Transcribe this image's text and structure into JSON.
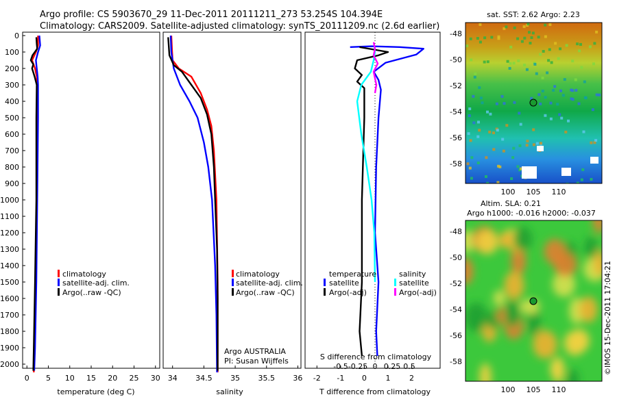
{
  "header": {
    "line1": "Argo profile: CS 5903670_29 11-Dec-2011 20111211_273 53.254S 104.394E",
    "line2": "Climatology: CARS2009. Satellite-adjusted climatology: synTS_20111209.nc (2.6d earlier)"
  },
  "colors": {
    "climatology": "#ff0000",
    "satellite": "#0000ff",
    "argo": "#000000",
    "sat_salinity": "#00ffff",
    "argo_adj_salinity": "#ff00ff"
  },
  "panels": {
    "temperature": {
      "xlabel": "temperature (deg C)",
      "xticks": [
        "0",
        "5",
        "10",
        "15",
        "20",
        "25",
        "30"
      ],
      "legend": [
        "climatology",
        "satellite-adj. clim.",
        "Argo(..raw -QC)"
      ]
    },
    "salinity": {
      "xlabel": "salinity",
      "xticks": [
        "34",
        "34.5",
        "35",
        "35.5",
        "36"
      ],
      "legend": [
        "climatology",
        "satellite-adj. clim.",
        "Argo(..raw -QC)"
      ],
      "note1": "Argo AUSTRALIA",
      "note2": "PI: Susan Wijffels"
    },
    "difference": {
      "xlabel": "T difference from climatology",
      "top_label": "S difference from climatology",
      "xticks": [
        "-2",
        "-1",
        "0",
        "1",
        "2"
      ],
      "top_ticks": [
        "-0.5",
        "-0.25",
        "0",
        "0.25",
        "0.5"
      ],
      "legend_temp_title": "temperature",
      "legend_sal_title": "salinity",
      "legend_temp": [
        "satellite",
        "Argo(-adj)"
      ],
      "legend_sal": [
        "satellite",
        "Argo(-adj)"
      ]
    },
    "depth_ticks": [
      "0",
      "100",
      "200",
      "300",
      "400",
      "500",
      "600",
      "700",
      "800",
      "900",
      "1000",
      "1100",
      "1200",
      "1300",
      "1400",
      "1500",
      "1600",
      "1700",
      "1800",
      "1900",
      "2000"
    ]
  },
  "maps": {
    "sst_title": "sat. SST: 2.62 Argo: 2.23",
    "sla_title1": "Altim. SLA: 0.21",
    "sla_title2": "Argo h1000: -0.016 h2000: -0.037",
    "lat_ticks": [
      "-48",
      "-50",
      "-52",
      "-54",
      "-56",
      "-58"
    ],
    "lon_ticks": [
      "100",
      "105",
      "110"
    ],
    "credit": "©IMOS 15-Dec-2011 17:04:21"
  },
  "chart_data": [
    {
      "type": "line",
      "title": "",
      "xlabel": "temperature (deg C)",
      "ylabel": "",
      "xlim": [
        -1,
        31
      ],
      "ylim": [
        2050,
        0
      ],
      "series": [
        {
          "name": "climatology",
          "points": [
            [
              2.6,
              0
            ],
            [
              2.6,
              60
            ],
            [
              2.1,
              100
            ],
            [
              1.2,
              150
            ],
            [
              1.9,
              200
            ],
            [
              2.3,
              250
            ],
            [
              2.4,
              300
            ],
            [
              2.4,
              500
            ],
            [
              2.3,
              1000
            ],
            [
              2.1,
              1500
            ],
            [
              1.8,
              1900
            ],
            [
              1.6,
              2050
            ]
          ]
        },
        {
          "name": "satellite-adj. clim.",
          "points": [
            [
              2.9,
              0
            ],
            [
              3.1,
              60
            ],
            [
              2.6,
              100
            ],
            [
              2.1,
              150
            ],
            [
              2.3,
              200
            ],
            [
              2.5,
              250
            ],
            [
              2.6,
              300
            ],
            [
              2.6,
              500
            ],
            [
              2.4,
              1000
            ],
            [
              2.2,
              1500
            ],
            [
              1.9,
              1900
            ],
            [
              1.7,
              2040
            ]
          ]
        },
        {
          "name": "Argo(..raw -QC)",
          "points": [
            [
              2.2,
              10
            ],
            [
              2.3,
              50
            ],
            [
              2.4,
              80
            ],
            [
              1.3,
              120
            ],
            [
              0.9,
              150
            ],
            [
              1.5,
              175
            ],
            [
              1.2,
              200
            ],
            [
              1.8,
              250
            ],
            [
              2.3,
              300
            ],
            [
              2.2,
              500
            ],
            [
              2.2,
              1000
            ],
            [
              1.9,
              1500
            ],
            [
              1.6,
              1900
            ],
            [
              1.5,
              2040
            ]
          ]
        }
      ]
    },
    {
      "type": "line",
      "title": "",
      "xlabel": "salinity",
      "ylabel": "",
      "xlim": [
        33.85,
        36.05
      ],
      "ylim": [
        2050,
        0
      ],
      "series": [
        {
          "name": "climatology",
          "points": [
            [
              33.98,
              0
            ],
            [
              33.99,
              80
            ],
            [
              34.0,
              150
            ],
            [
              34.1,
              200
            ],
            [
              34.3,
              250
            ],
            [
              34.45,
              350
            ],
            [
              34.55,
              450
            ],
            [
              34.62,
              550
            ],
            [
              34.66,
              700
            ],
            [
              34.7,
              1000
            ],
            [
              34.72,
              1500
            ],
            [
              34.72,
              2050
            ]
          ]
        },
        {
          "name": "satellite-adj. clim.",
          "points": [
            [
              33.97,
              0
            ],
            [
              33.98,
              100
            ],
            [
              34.02,
              200
            ],
            [
              34.12,
              300
            ],
            [
              34.27,
              400
            ],
            [
              34.4,
              500
            ],
            [
              34.5,
              650
            ],
            [
              34.57,
              800
            ],
            [
              34.63,
              1000
            ],
            [
              34.68,
              1400
            ],
            [
              34.7,
              1700
            ],
            [
              34.71,
              2050
            ]
          ]
        },
        {
          "name": "Argo(..raw -QC)",
          "points": [
            [
              33.93,
              10
            ],
            [
              33.95,
              120
            ],
            [
              34.02,
              180
            ],
            [
              34.15,
              220
            ],
            [
              34.3,
              300
            ],
            [
              34.45,
              380
            ],
            [
              34.55,
              480
            ],
            [
              34.62,
              600
            ],
            [
              34.66,
              800
            ],
            [
              34.68,
              1000
            ],
            [
              34.71,
              1300
            ],
            [
              34.72,
              1600
            ],
            [
              34.72,
              2040
            ]
          ]
        }
      ]
    },
    {
      "type": "line",
      "title": "",
      "xlabel": "T difference from climatology",
      "ylabel": "",
      "xlim": [
        -2.5,
        3.2
      ],
      "ylim": [
        2050,
        0
      ],
      "series": [
        {
          "name": "temperature satellite",
          "points": [
            [
              -0.6,
              70
            ],
            [
              0.3,
              65
            ],
            [
              1.5,
              70
            ],
            [
              2.5,
              80
            ],
            [
              2.2,
              115
            ],
            [
              0.9,
              165
            ],
            [
              0.4,
              220
            ],
            [
              0.6,
              270
            ],
            [
              0.7,
              330
            ],
            [
              0.6,
              500
            ],
            [
              0.5,
              800
            ],
            [
              0.45,
              1200
            ],
            [
              0.6,
              1500
            ],
            [
              0.5,
              1800
            ],
            [
              0.55,
              1950
            ]
          ]
        },
        {
          "name": "temperature Argo(-adj)",
          "points": [
            [
              -0.2,
              70
            ],
            [
              1.0,
              100
            ],
            [
              0.6,
              120
            ],
            [
              -0.3,
              150
            ],
            [
              -0.4,
              200
            ],
            [
              -0.1,
              240
            ],
            [
              -0.3,
              280
            ],
            [
              0.0,
              320
            ],
            [
              0.0,
              500
            ],
            [
              -0.1,
              1000
            ],
            [
              -0.1,
              1500
            ],
            [
              -0.2,
              1800
            ],
            [
              -0.1,
              1950
            ]
          ]
        },
        {
          "name": "salinity satellite",
          "points": [
            [
              -0.01,
              60
            ],
            [
              0.0,
              100
            ],
            [
              -0.02,
              150
            ],
            [
              -0.06,
              220
            ],
            [
              -0.2,
              300
            ],
            [
              -0.26,
              400
            ],
            [
              -0.2,
              600
            ],
            [
              -0.12,
              800
            ],
            [
              -0.05,
              1000
            ],
            [
              -0.01,
              1200
            ],
            [
              0.0,
              1500
            ]
          ]
        },
        {
          "name": "salinity Argo(-adj)",
          "points": [
            [
              -0.02,
              40
            ],
            [
              0.0,
              80
            ],
            [
              -0.02,
              120
            ],
            [
              0.04,
              170
            ],
            [
              -0.02,
              220
            ],
            [
              0.02,
              300
            ],
            [
              0.0,
              350
            ]
          ]
        }
      ]
    }
  ]
}
